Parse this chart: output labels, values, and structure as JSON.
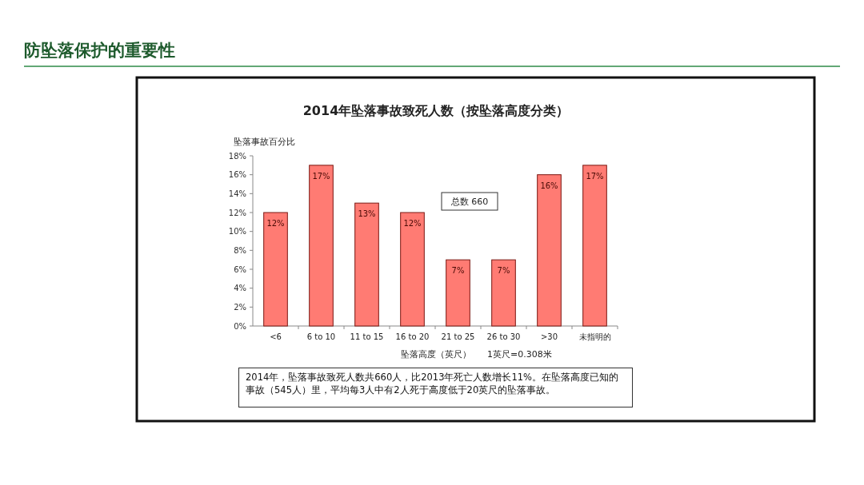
{
  "chart_data": {
    "type": "bar",
    "title": "防坠落保护的重要性",
    "subtitle": "2014年坠落事故致死人数（按坠落高度分类）",
    "ylabel": "坠落事故百分比",
    "xlabel": "坠落高度（英尺）",
    "categories": [
      "<6",
      "6 to 10",
      "11 to 15",
      "16 to 20",
      "21 to 25",
      "26 to 30",
      ">30",
      "未指明的"
    ],
    "values": [
      12,
      17,
      13,
      12,
      7,
      7,
      16,
      17
    ],
    "value_labels": [
      "12%",
      "17%",
      "13%",
      "12%",
      "7%",
      "7%",
      "16%",
      "17%"
    ],
    "color": "#ff7b73",
    "ylim": [
      0,
      18
    ],
    "yticks": [
      {
        "value": 0,
        "label": "0%"
      },
      {
        "value": 2,
        "label": "2%"
      },
      {
        "value": 4,
        "label": "4%"
      },
      {
        "value": 6,
        "label": "6%"
      },
      {
        "value": 8,
        "label": "8%"
      },
      {
        "value": 10,
        "label": "10%"
      },
      {
        "value": 12,
        "label": "12%"
      },
      {
        "value": 14,
        "label": "14%"
      },
      {
        "value": 16,
        "label": "16%"
      },
      {
        "value": 18,
        "label": "18%"
      }
    ],
    "annotations": [
      "总数   660",
      "1英尺=0.308米",
      "2014年，坠落事故致死人数共660人，比2013年死亡人数增长11%。在坠落高度已知的事故（545人）里，平均每3人中有2人死于高度低于20英尺的坠落事故。"
    ]
  }
}
